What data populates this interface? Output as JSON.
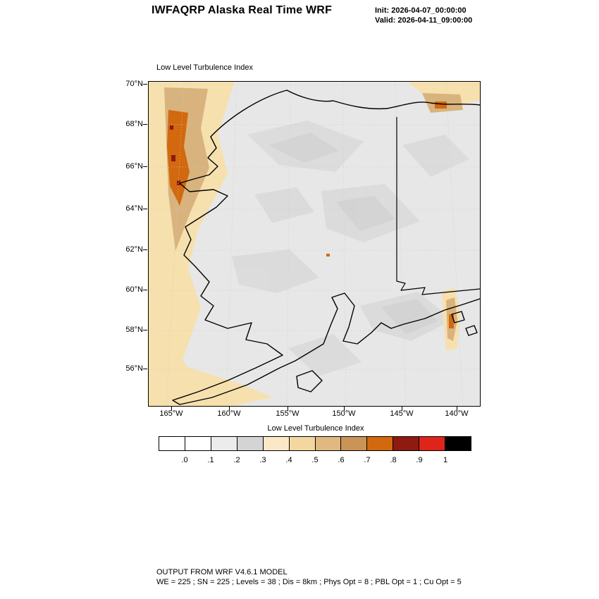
{
  "header": {
    "title": "IWFAQRP Alaska Real Time WRF",
    "init_label": "Init: 2026-04-07_00:00:00",
    "valid_label": "Valid: 2026-04-11_09:00:00"
  },
  "map": {
    "field_label": "Low Level Turbulence Index",
    "y_ticks": [
      "70°N",
      "68°N",
      "66°N",
      "64°N",
      "62°N",
      "60°N",
      "58°N",
      "56°N"
    ],
    "x_ticks": [
      "165°W",
      "160°W",
      "155°W",
      "150°W",
      "145°W",
      "140°W"
    ]
  },
  "colorbar": {
    "title": "Low Level Turbulence Index",
    "labels": [
      ".0",
      ".1",
      ".2",
      ".3",
      ".4",
      ".5",
      ".6",
      ".7",
      ".8",
      ".9",
      "1"
    ],
    "colors": [
      "#ffffff",
      "#ffffff",
      "#ececec",
      "#d4d4d4",
      "#fbe8c6",
      "#f3d79e",
      "#dfb981",
      "#c99455",
      "#d2690e",
      "#8e1a10",
      "#df241a",
      "#000000"
    ]
  },
  "footer": {
    "line1": "OUTPUT FROM WRF V4.6.1 MODEL",
    "line2": "WE = 225 ; SN = 225 ; Levels = 38 ; Dis = 8km ; Phys Opt = 8 ; PBL Opt = 1 ; Cu Opt = 5"
  },
  "map_colors": {
    "base": "#e7e7e7",
    "shade": "#d9d9d9",
    "shade2": "#d0d0d0",
    "wheat": "#f6e0ae",
    "tan": "#d9b37e",
    "brown": "#c08c50",
    "orange": "#d2690e",
    "darkred": "#8e1a10",
    "coast": "#000000",
    "grid": "#c9c9c9"
  }
}
